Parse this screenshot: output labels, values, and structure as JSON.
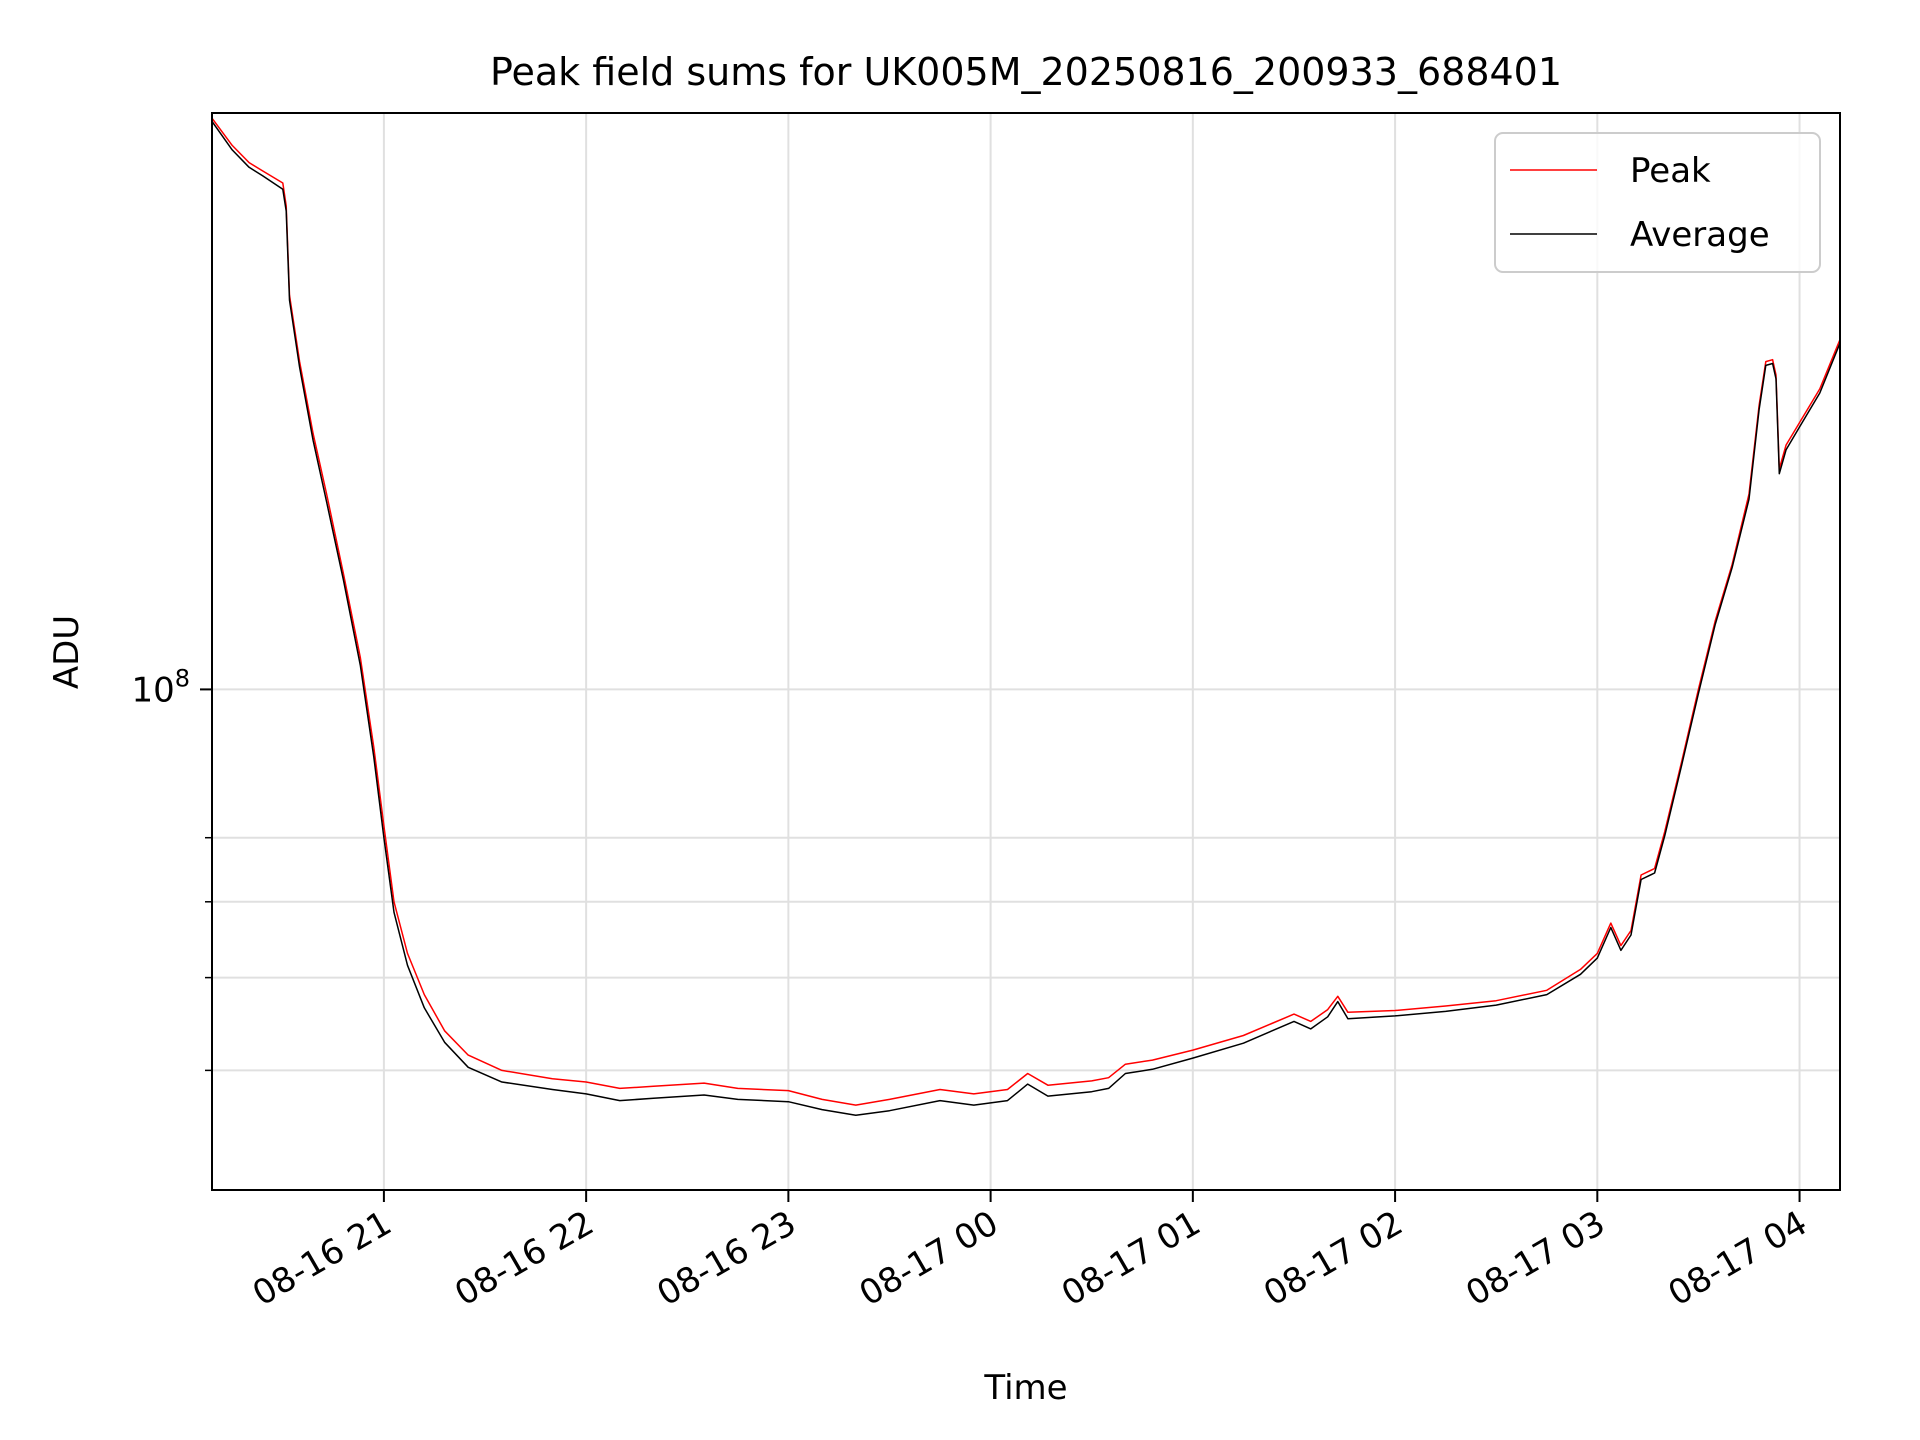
{
  "chart_data": {
    "type": "line",
    "title": "Peak field sums for UK005M_20250816_200933_688401",
    "xlabel": "Time",
    "ylabel": "ADU",
    "x_axis": {
      "kind": "datetime",
      "ticks": [
        "2025-08-16 21:00",
        "2025-08-16 22:00",
        "2025-08-16 23:00",
        "2025-08-17 00:00",
        "2025-08-17 01:00",
        "2025-08-17 02:00",
        "2025-08-17 03:00",
        "2025-08-17 04:00"
      ],
      "tick_labels": [
        "08-16 21",
        "08-16 22",
        "08-16 23",
        "08-17 00",
        "08-17 01",
        "08-17 02",
        "08-17 03",
        "08-17 04"
      ],
      "range": [
        "2025-08-16 20:09",
        "2025-08-17 04:12"
      ]
    },
    "y_axis": {
      "scale": "log",
      "range": [
        30000000,
        400000000
      ],
      "major_ticks": [
        100000000
      ],
      "major_tick_labels": [
        "10^8"
      ],
      "minor_ticks": [
        40000000,
        50000000,
        60000000,
        70000000
      ]
    },
    "grid": true,
    "legend": {
      "placement": "top-right",
      "entries": [
        "Peak",
        "Average"
      ]
    },
    "series": [
      {
        "name": "Peak",
        "color": "#ff0000",
        "points": [
          [
            "2025-08-16 20:09",
            395000000
          ],
          [
            "2025-08-16 20:15",
            370000000
          ],
          [
            "2025-08-16 20:20",
            355000000
          ],
          [
            "2025-08-16 20:24",
            348000000
          ],
          [
            "2025-08-16 20:30",
            338000000
          ],
          [
            "2025-08-16 20:31",
            320000000
          ],
          [
            "2025-08-16 20:32",
            258000000
          ],
          [
            "2025-08-16 20:35",
            220000000
          ],
          [
            "2025-08-16 20:39",
            185000000
          ],
          [
            "2025-08-16 20:43",
            160000000
          ],
          [
            "2025-08-16 20:48",
            132000000
          ],
          [
            "2025-08-16 20:53",
            108000000
          ],
          [
            "2025-08-16 20:57",
            87000000
          ],
          [
            "2025-08-16 21:00",
            72000000
          ],
          [
            "2025-08-16 21:03",
            60000000
          ],
          [
            "2025-08-16 21:07",
            53000000
          ],
          [
            "2025-08-16 21:12",
            48000000
          ],
          [
            "2025-08-16 21:18",
            44000000
          ],
          [
            "2025-08-16 21:25",
            41500000
          ],
          [
            "2025-08-16 21:35",
            40000000
          ],
          [
            "2025-08-16 21:50",
            39200000
          ],
          [
            "2025-08-16 22:00",
            38900000
          ],
          [
            "2025-08-16 22:10",
            38300000
          ],
          [
            "2025-08-16 22:20",
            38500000
          ],
          [
            "2025-08-16 22:35",
            38800000
          ],
          [
            "2025-08-16 22:45",
            38300000
          ],
          [
            "2025-08-16 23:00",
            38100000
          ],
          [
            "2025-08-16 23:10",
            37300000
          ],
          [
            "2025-08-16 23:20",
            36800000
          ],
          [
            "2025-08-16 23:30",
            37300000
          ],
          [
            "2025-08-16 23:45",
            38200000
          ],
          [
            "2025-08-16 23:55",
            37800000
          ],
          [
            "2025-08-17 00:05",
            38200000
          ],
          [
            "2025-08-17 00:11",
            39700000
          ],
          [
            "2025-08-17 00:17",
            38600000
          ],
          [
            "2025-08-17 00:30",
            39000000
          ],
          [
            "2025-08-17 00:35",
            39300000
          ],
          [
            "2025-08-17 00:40",
            40600000
          ],
          [
            "2025-08-17 00:48",
            41000000
          ],
          [
            "2025-08-17 01:00",
            42000000
          ],
          [
            "2025-08-17 01:15",
            43500000
          ],
          [
            "2025-08-17 01:30",
            45800000
          ],
          [
            "2025-08-17 01:35",
            45000000
          ],
          [
            "2025-08-17 01:40",
            46300000
          ],
          [
            "2025-08-17 01:43",
            47800000
          ],
          [
            "2025-08-17 01:46",
            46000000
          ],
          [
            "2025-08-17 02:00",
            46200000
          ],
          [
            "2025-08-17 02:15",
            46700000
          ],
          [
            "2025-08-17 02:30",
            47300000
          ],
          [
            "2025-08-17 02:45",
            48500000
          ],
          [
            "2025-08-17 02:55",
            51000000
          ],
          [
            "2025-08-17 03:00",
            53000000
          ],
          [
            "2025-08-17 03:04",
            57000000
          ],
          [
            "2025-08-17 03:07",
            54000000
          ],
          [
            "2025-08-17 03:10",
            56000000
          ],
          [
            "2025-08-17 03:13",
            64000000
          ],
          [
            "2025-08-17 03:17",
            65000000
          ],
          [
            "2025-08-17 03:20",
            71000000
          ],
          [
            "2025-08-17 03:25",
            84000000
          ],
          [
            "2025-08-17 03:30",
            100000000
          ],
          [
            "2025-08-17 03:35",
            118000000
          ],
          [
            "2025-08-17 03:40",
            135000000
          ],
          [
            "2025-08-17 03:45",
            160000000
          ],
          [
            "2025-08-17 03:48",
            198000000
          ],
          [
            "2025-08-17 03:50",
            220000000
          ],
          [
            "2025-08-17 03:52",
            221000000
          ],
          [
            "2025-08-17 03:53",
            213000000
          ],
          [
            "2025-08-17 03:54",
            170000000
          ],
          [
            "2025-08-17 03:56",
            180000000
          ],
          [
            "2025-08-17 04:00",
            190000000
          ],
          [
            "2025-08-17 04:06",
            206000000
          ],
          [
            "2025-08-17 04:12",
            232000000
          ]
        ]
      },
      {
        "name": "Average",
        "color": "#000000",
        "points": [
          [
            "2025-08-16 20:09",
            392000000
          ],
          [
            "2025-08-16 20:15",
            366000000
          ],
          [
            "2025-08-16 20:20",
            351000000
          ],
          [
            "2025-08-16 20:24",
            344000000
          ],
          [
            "2025-08-16 20:30",
            333000000
          ],
          [
            "2025-08-16 20:31",
            316000000
          ],
          [
            "2025-08-16 20:32",
            255000000
          ],
          [
            "2025-08-16 20:35",
            217000000
          ],
          [
            "2025-08-16 20:39",
            182000000
          ],
          [
            "2025-08-16 20:43",
            157000000
          ],
          [
            "2025-08-16 20:48",
            130000000
          ],
          [
            "2025-08-16 20:53",
            106000000
          ],
          [
            "2025-08-16 20:57",
            85000000
          ],
          [
            "2025-08-16 21:00",
            70000000
          ],
          [
            "2025-08-16 21:03",
            58500000
          ],
          [
            "2025-08-16 21:07",
            51500000
          ],
          [
            "2025-08-16 21:12",
            46500000
          ],
          [
            "2025-08-16 21:18",
            42800000
          ],
          [
            "2025-08-16 21:25",
            40300000
          ],
          [
            "2025-08-16 21:35",
            38900000
          ],
          [
            "2025-08-16 21:50",
            38200000
          ],
          [
            "2025-08-16 22:00",
            37800000
          ],
          [
            "2025-08-16 22:10",
            37200000
          ],
          [
            "2025-08-16 22:20",
            37400000
          ],
          [
            "2025-08-16 22:35",
            37700000
          ],
          [
            "2025-08-16 22:45",
            37300000
          ],
          [
            "2025-08-16 23:00",
            37100000
          ],
          [
            "2025-08-16 23:10",
            36400000
          ],
          [
            "2025-08-16 23:20",
            35900000
          ],
          [
            "2025-08-16 23:30",
            36300000
          ],
          [
            "2025-08-16 23:45",
            37200000
          ],
          [
            "2025-08-16 23:55",
            36800000
          ],
          [
            "2025-08-17 00:05",
            37200000
          ],
          [
            "2025-08-17 00:11",
            38700000
          ],
          [
            "2025-08-17 00:17",
            37600000
          ],
          [
            "2025-08-17 00:30",
            38000000
          ],
          [
            "2025-08-17 00:35",
            38300000
          ],
          [
            "2025-08-17 00:40",
            39700000
          ],
          [
            "2025-08-17 00:48",
            40100000
          ],
          [
            "2025-08-17 01:00",
            41200000
          ],
          [
            "2025-08-17 01:15",
            42700000
          ],
          [
            "2025-08-17 01:30",
            45000000
          ],
          [
            "2025-08-17 01:35",
            44200000
          ],
          [
            "2025-08-17 01:40",
            45500000
          ],
          [
            "2025-08-17 01:43",
            47200000
          ],
          [
            "2025-08-17 01:46",
            45300000
          ],
          [
            "2025-08-17 02:00",
            45600000
          ],
          [
            "2025-08-17 02:15",
            46100000
          ],
          [
            "2025-08-17 02:30",
            46800000
          ],
          [
            "2025-08-17 02:45",
            48000000
          ],
          [
            "2025-08-17 02:55",
            50400000
          ],
          [
            "2025-08-17 03:00",
            52400000
          ],
          [
            "2025-08-17 03:04",
            56400000
          ],
          [
            "2025-08-17 03:07",
            53400000
          ],
          [
            "2025-08-17 03:10",
            55400000
          ],
          [
            "2025-08-17 03:13",
            63300000
          ],
          [
            "2025-08-17 03:17",
            64300000
          ],
          [
            "2025-08-17 03:20",
            70300000
          ],
          [
            "2025-08-17 03:25",
            83300000
          ],
          [
            "2025-08-17 03:30",
            99000000
          ],
          [
            "2025-08-17 03:35",
            117000000
          ],
          [
            "2025-08-17 03:40",
            134000000
          ],
          [
            "2025-08-17 03:45",
            158000000
          ],
          [
            "2025-08-17 03:48",
            196000000
          ],
          [
            "2025-08-17 03:50",
            218000000
          ],
          [
            "2025-08-17 03:52",
            219000000
          ],
          [
            "2025-08-17 03:53",
            211000000
          ],
          [
            "2025-08-17 03:54",
            168000000
          ],
          [
            "2025-08-17 03:56",
            178000000
          ],
          [
            "2025-08-17 04:00",
            188000000
          ],
          [
            "2025-08-17 04:06",
            204000000
          ],
          [
            "2025-08-17 04:12",
            230000000
          ]
        ]
      }
    ]
  }
}
